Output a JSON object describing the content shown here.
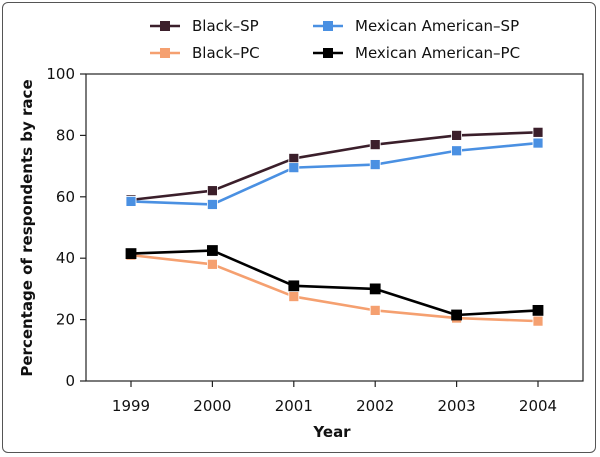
{
  "chart_data": {
    "type": "line",
    "title": "",
    "xlabel": "Year",
    "ylabel": "Percentage of respondents by race",
    "ylim": [
      0,
      100
    ],
    "yticks": [
      0,
      20,
      40,
      60,
      80,
      100
    ],
    "categories": [
      "1999",
      "2000",
      "2001",
      "2002",
      "2003",
      "2004"
    ],
    "grid": false,
    "legend_position": "top",
    "series": [
      {
        "name": "Black–SP",
        "color": "#3b1f2b",
        "values": [
          59,
          62,
          72.5,
          77,
          80,
          81
        ]
      },
      {
        "name": "Mexican American–SP",
        "color": "#4a90e2",
        "values": [
          58.5,
          57.5,
          69.5,
          70.5,
          75,
          77.5
        ]
      },
      {
        "name": "Black–PC",
        "color": "#f5a070",
        "values": [
          41,
          38,
          27.5,
          23,
          20.5,
          19.5
        ]
      },
      {
        "name": "Mexican American–PC",
        "color": "#000000",
        "values": [
          41.5,
          42.5,
          31,
          30,
          21.5,
          23
        ]
      }
    ]
  }
}
